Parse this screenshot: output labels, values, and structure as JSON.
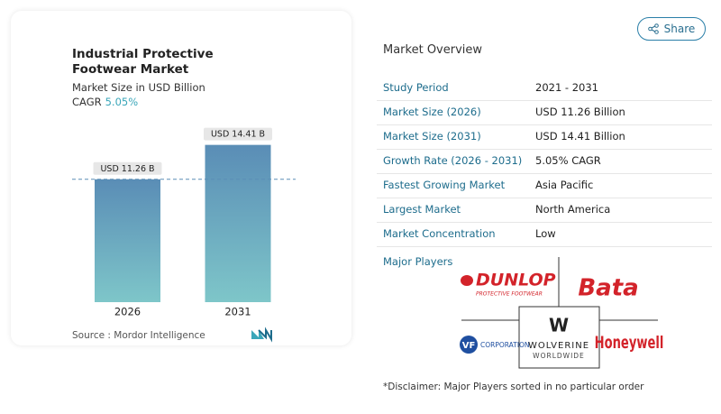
{
  "share_button": "Share",
  "chart_data": {
    "type": "bar",
    "title": "Industrial Protective Footwear Market",
    "subtitle": "Market Size in USD Billion",
    "cagr_label": "CAGR",
    "cagr_value": "5.05%",
    "categories": [
      "2026",
      "2031"
    ],
    "values": [
      11.26,
      14.41
    ],
    "value_labels": [
      "USD 11.26 B",
      "USD 14.41 B"
    ],
    "source": "Source :  Mordor Intelligence"
  },
  "overview": {
    "title": "Market Overview",
    "rows": [
      [
        "Study Period",
        "2021 - 2031"
      ],
      [
        "Market Size (2026)",
        "USD 11.26 Billion"
      ],
      [
        "Market Size (2031)",
        "USD 14.41 Billion"
      ],
      [
        "Growth Rate (2026 - 2031)",
        "5.05% CAGR"
      ],
      [
        "Fastest Growing Market",
        "Asia Pacific"
      ],
      [
        "Largest Market",
        "North America"
      ],
      [
        "Market Concentration",
        "Low"
      ]
    ]
  },
  "major_players": {
    "title": "Major Players",
    "dunlop": [
      "DUNLOP",
      "PROTECTIVE FOOTWEAR"
    ],
    "bata": "Bata",
    "vf": [
      "VF",
      "CORPORATION"
    ],
    "wolverine": [
      "W",
      "WOLVERINE",
      "WORLDWIDE"
    ],
    "honeywell": "Honeywell"
  },
  "disclaimer": "*Disclaimer: Major Players sorted in no particular order"
}
